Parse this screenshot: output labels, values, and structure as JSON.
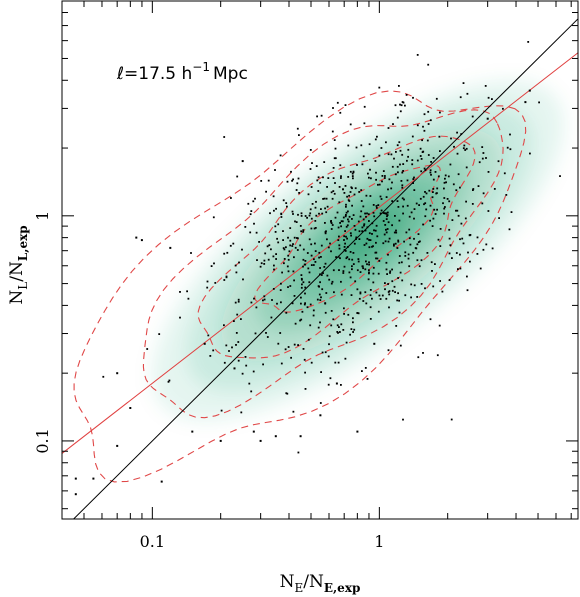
{
  "chart_data": {
    "type": "scatter",
    "title": "",
    "annotation": {
      "text": "ℓ=17.5 h⁻¹Mpc",
      "prefix": "ℓ=17.5 h",
      "exponent": "−1",
      "suffix": "Mpc"
    },
    "xlabel": {
      "main": "N",
      "sub1": "E",
      "slash": "/N",
      "sub2": "E,exp"
    },
    "ylabel": {
      "main": "N",
      "sub1": "L",
      "slash": "/N",
      "sub2": "L,exp"
    },
    "xscale": "log",
    "yscale": "log",
    "xlim": [
      0.04,
      7.5
    ],
    "ylim": [
      0.045,
      9.0
    ],
    "xticks": [
      {
        "value": 0.1,
        "label": "0.1"
      },
      {
        "value": 1,
        "label": "1"
      }
    ],
    "yticks": [
      {
        "value": 0.1,
        "label": "0.1"
      },
      {
        "value": 1,
        "label": "1"
      }
    ],
    "grid": false,
    "lines": [
      {
        "kind": "identity",
        "color": "#000000",
        "x": [
          0.04,
          7.5
        ],
        "y": [
          0.04,
          7.5
        ]
      },
      {
        "kind": "fit",
        "color": "#e04040",
        "x": [
          0.04,
          7.5
        ],
        "y": [
          0.088,
          5.3
        ]
      }
    ],
    "density": {
      "colormap": "green",
      "color": "#1a9a6a",
      "ridge_slope": 0.78,
      "center": [
        0.9,
        0.85
      ]
    },
    "contours": {
      "color": "#e04848",
      "style": "dashed",
      "levels": [
        {
          "center": [
            0.75,
            0.78
          ],
          "halfwidth_dex": [
            0.48,
            0.16
          ]
        },
        {
          "center": [
            0.65,
            0.72
          ],
          "halfwidth_dex": [
            0.72,
            0.27
          ]
        },
        {
          "center": [
            0.55,
            0.64
          ],
          "halfwidth_dex": [
            0.96,
            0.38
          ]
        },
        {
          "center": [
            0.42,
            0.52
          ],
          "halfwidth_dex": [
            1.18,
            0.5
          ]
        }
      ]
    },
    "points": {
      "color": "#000000",
      "count": 900,
      "center": [
        0.8,
        0.8
      ],
      "slope": 0.85,
      "spread_dex": [
        0.36,
        0.22
      ],
      "outliers": [
        [
          0.085,
          0.8
        ],
        [
          0.09,
          0.78
        ],
        [
          0.25,
          1.75
        ],
        [
          0.07,
          0.2
        ],
        [
          0.08,
          0.14
        ],
        [
          0.12,
          0.72
        ],
        [
          0.046,
          0.058
        ],
        [
          0.046,
          0.068
        ],
        [
          0.055,
          0.068
        ],
        [
          0.07,
          0.095
        ],
        [
          0.28,
          0.11
        ],
        [
          0.3,
          0.1
        ],
        [
          0.15,
          0.11
        ],
        [
          0.11,
          0.066
        ],
        [
          0.2,
          0.1
        ],
        [
          0.35,
          0.105
        ],
        [
          0.8,
          0.11
        ],
        [
          0.55,
          0.13
        ],
        [
          0.8,
          0.37
        ],
        [
          2.5,
          0.82
        ],
        [
          4.4,
          3.2
        ],
        [
          4.6,
          3.6
        ],
        [
          3.0,
          2.7
        ],
        [
          0.45,
          0.105
        ],
        [
          0.65,
          0.18
        ],
        [
          0.95,
          0.27
        ],
        [
          0.23,
          0.21
        ],
        [
          0.17,
          0.27
        ]
      ]
    }
  }
}
